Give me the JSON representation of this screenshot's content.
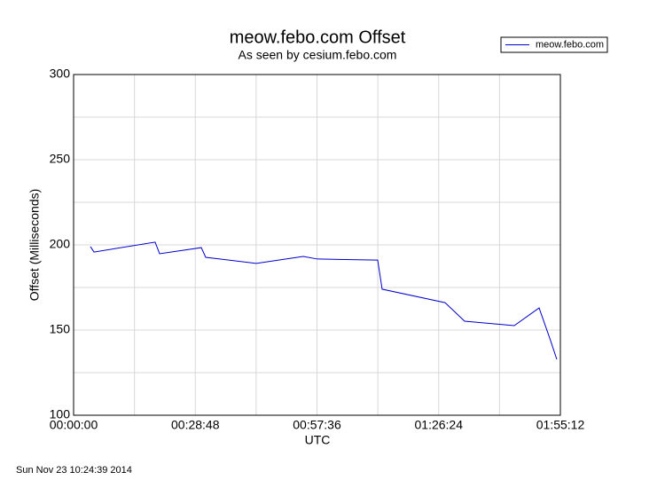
{
  "chart_data": {
    "type": "line",
    "title": "meow.febo.com Offset",
    "subtitle": "As seen by cesium.febo.com",
    "xlabel": "UTC",
    "ylabel": "Offset (Milliseconds)",
    "footer": "Sun Nov 23 10:24:39 2014",
    "x": [
      239,
      290,
      1158,
      1221,
      1813,
      1876,
      2594,
      3261,
      3462,
      4318,
      4381,
      5275,
      5552,
      6257,
      6610,
      6773,
      6861
    ],
    "series": [
      {
        "name": "meow.febo.com",
        "color": "#0000cc",
        "values": [
          199.0,
          195.8,
          201.6,
          194.8,
          198.4,
          192.7,
          189.1,
          193.2,
          191.7,
          191.1,
          174.0,
          166.1,
          155.2,
          152.6,
          163.0,
          143.8,
          132.8
        ]
      }
    ],
    "xlim": [
      0,
      6912
    ],
    "xticks": [
      {
        "value": 0,
        "label": "00:00:00"
      },
      {
        "value": 1728,
        "label": "00:28:48"
      },
      {
        "value": 3456,
        "label": "00:57:36"
      },
      {
        "value": 5184,
        "label": "01:26:24"
      },
      {
        "value": 6912,
        "label": "01:55:12"
      }
    ],
    "xminorticks": [
      864,
      2592,
      4320,
      6048
    ],
    "ylim": [
      100,
      300
    ],
    "yticks": [
      100,
      150,
      200,
      250,
      300
    ],
    "yminorticks": [
      125,
      175,
      225,
      275
    ],
    "grid": true,
    "legend": "top-right"
  }
}
